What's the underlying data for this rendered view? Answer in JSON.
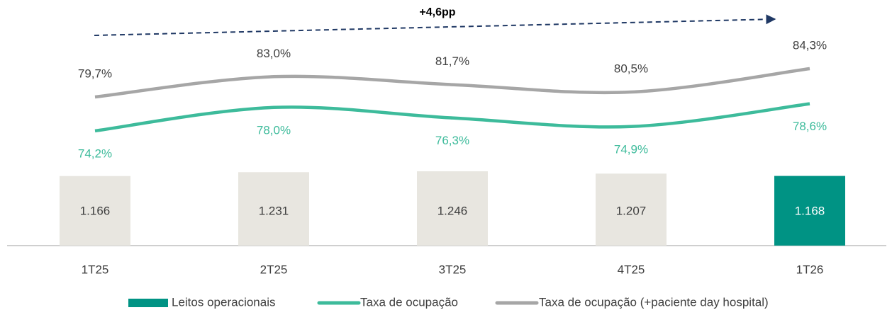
{
  "chart_data": {
    "type": "combo",
    "annotation": "+4,6pp",
    "categories": [
      "1T25",
      "2T25",
      "3T25",
      "4T25",
      "1T26"
    ],
    "series": [
      {
        "name": "Leitos operacionais",
        "type": "bar",
        "color": "#009384",
        "colors": [
          "#e8e6e0",
          "#e8e6e0",
          "#e8e6e0",
          "#e8e6e0",
          "#009384"
        ],
        "values": [
          1166,
          1231,
          1246,
          1207,
          1168
        ],
        "value_labels": [
          "1.166",
          "1.231",
          "1.246",
          "1.207",
          "1.168"
        ]
      },
      {
        "name": "Taxa de ocupação",
        "type": "line",
        "color": "#3dbb9b",
        "values": [
          74.2,
          78.0,
          76.3,
          74.9,
          78.6
        ],
        "value_labels": [
          "74,2%",
          "78,0%",
          "76,3%",
          "74,9%",
          "78,6%"
        ]
      },
      {
        "name": "Taxa de ocupação (+paciente day hospital)",
        "type": "line",
        "color": "#a6a6a6",
        "values": [
          79.7,
          83.0,
          81.7,
          80.5,
          84.3
        ],
        "value_labels": [
          "79,7%",
          "83,0%",
          "81,7%",
          "80,5%",
          "84,3%"
        ]
      }
    ]
  }
}
